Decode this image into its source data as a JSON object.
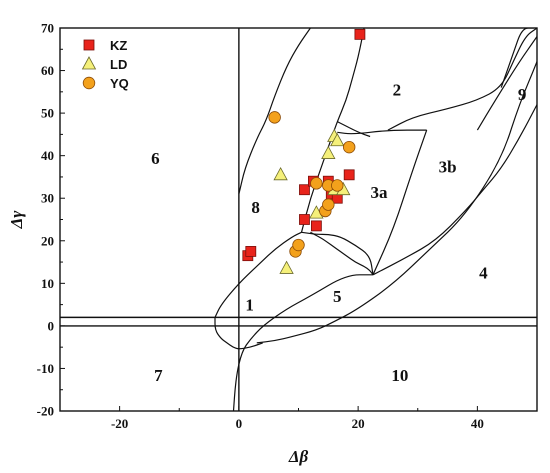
{
  "chart_data": {
    "type": "scatter",
    "xlabel": "Δβ",
    "ylabel": "Δγ",
    "xlim": [
      -30,
      50
    ],
    "ylim": [
      -20,
      70
    ],
    "xticks": [
      -20,
      0,
      20,
      40
    ],
    "yticks": [
      -20,
      -10,
      0,
      10,
      20,
      30,
      40,
      50,
      60,
      70
    ],
    "grid": false,
    "legend_position": "top-left",
    "series": [
      {
        "name": "KZ",
        "marker": "square",
        "color": "#e8231b",
        "points": [
          [
            1.5,
            16.5
          ],
          [
            2,
            17.5
          ],
          [
            11,
            32
          ],
          [
            11,
            25
          ],
          [
            12.5,
            34
          ],
          [
            13,
            23.5
          ],
          [
            15,
            34
          ],
          [
            15.5,
            31
          ],
          [
            16.5,
            30
          ],
          [
            18.5,
            35.5
          ],
          [
            20.3,
            68.5
          ]
        ]
      },
      {
        "name": "LD",
        "marker": "triangle",
        "color": "#f5f07a",
        "points": [
          [
            7,
            35.5
          ],
          [
            8,
            13.5
          ],
          [
            13,
            26.5
          ],
          [
            15,
            40.5
          ],
          [
            16,
            44.5
          ],
          [
            16.5,
            43.5
          ],
          [
            16,
            32
          ],
          [
            17.5,
            32
          ]
        ]
      },
      {
        "name": "YQ",
        "marker": "circle",
        "color": "#f3a11c",
        "points": [
          [
            6,
            49
          ],
          [
            9.5,
            17.5
          ],
          [
            10,
            19
          ],
          [
            13,
            33.5
          ],
          [
            14.5,
            27
          ],
          [
            15,
            28.5
          ],
          [
            15,
            33
          ],
          [
            16.5,
            33
          ],
          [
            18.5,
            42
          ]
        ]
      }
    ],
    "region_labels": [
      {
        "text": "1",
        "x": 1.8,
        "y": 4.5
      },
      {
        "text": "2",
        "x": 26.5,
        "y": 55
      },
      {
        "text": "3a",
        "x": 23.5,
        "y": 31
      },
      {
        "text": "3b",
        "x": 35,
        "y": 37
      },
      {
        "text": "4",
        "x": 41,
        "y": 12
      },
      {
        "text": "5",
        "x": 16.5,
        "y": 6.5
      },
      {
        "text": "6",
        "x": -14,
        "y": 39
      },
      {
        "text": "7",
        "x": -13.5,
        "y": -12
      },
      {
        "text": "8",
        "x": 2.8,
        "y": 27.5
      },
      {
        "text": "9",
        "x": 47.5,
        "y": 54
      },
      {
        "text": "10",
        "x": 27,
        "y": -12
      }
    ],
    "reference_lines": {
      "horizontal": [
        0,
        2
      ],
      "vertical": [
        0
      ]
    },
    "boundaries": [
      [
        [
          -4,
          2
        ],
        [
          -3,
          5
        ],
        [
          0,
          10
        ],
        [
          3,
          14
        ],
        [
          6,
          18
        ],
        [
          9,
          21
        ],
        [
          10.5,
          22
        ]
      ],
      [
        [
          0,
          31
        ],
        [
          1,
          37
        ],
        [
          3,
          44
        ],
        [
          4.5,
          48
        ],
        [
          6,
          54
        ],
        [
          8,
          61
        ],
        [
          10,
          66
        ],
        [
          12,
          70
        ]
      ],
      [
        [
          10.5,
          22
        ],
        [
          12,
          30
        ],
        [
          14,
          38
        ],
        [
          15.5,
          44
        ],
        [
          16.5,
          48
        ],
        [
          18,
          53
        ],
        [
          19,
          58
        ],
        [
          20,
          63
        ],
        [
          21,
          70
        ]
      ],
      [
        [
          12,
          22
        ],
        [
          14,
          20.5
        ],
        [
          15,
          19.5
        ],
        [
          16,
          18.5
        ],
        [
          18,
          16.5
        ],
        [
          19.5,
          15
        ],
        [
          21,
          14
        ],
        [
          22,
          13
        ],
        [
          22.5,
          12
        ]
      ],
      [
        [
          10.5,
          22
        ],
        [
          13,
          21.5
        ],
        [
          15,
          21.5
        ],
        [
          17,
          21
        ],
        [
          19.5,
          19
        ],
        [
          22,
          16.5
        ],
        [
          22.5,
          12
        ]
      ],
      [
        [
          22.5,
          12
        ],
        [
          26,
          23
        ],
        [
          29,
          36
        ],
        [
          31.5,
          46
        ]
      ],
      [
        [
          16.5,
          45.5
        ],
        [
          19,
          45
        ],
        [
          25,
          46
        ],
        [
          31.5,
          46
        ]
      ],
      [
        [
          25,
          46
        ],
        [
          29,
          49
        ],
        [
          35,
          51
        ],
        [
          40,
          53
        ],
        [
          44,
          56
        ],
        [
          46,
          62
        ],
        [
          48,
          68
        ],
        [
          50,
          70
        ]
      ],
      [
        [
          16.5,
          48
        ],
        [
          20,
          45.5
        ],
        [
          22,
          44.5
        ]
      ],
      [
        [
          44,
          56
        ],
        [
          46,
          64
        ],
        [
          47.5,
          70
        ],
        [
          49.5,
          70
        ]
      ],
      [
        [
          -1,
          -22
        ],
        [
          -0.5,
          -12
        ],
        [
          0.5,
          -6
        ],
        [
          2,
          -3
        ],
        [
          4,
          0
        ],
        [
          8,
          4
        ],
        [
          12,
          7
        ],
        [
          18,
          12
        ],
        [
          22.5,
          12
        ]
      ],
      [
        [
          22.5,
          12
        ],
        [
          28,
          16
        ],
        [
          33,
          20
        ],
        [
          38,
          27
        ],
        [
          41,
          32
        ],
        [
          44,
          37
        ],
        [
          47,
          44
        ],
        [
          50,
          52
        ]
      ],
      [
        [
          3,
          -4
        ],
        [
          6,
          -3.5
        ],
        [
          9,
          -2.5
        ],
        [
          13,
          -1
        ],
        [
          16,
          1
        ],
        [
          20,
          4
        ],
        [
          26,
          10
        ],
        [
          32,
          18
        ],
        [
          38,
          26
        ],
        [
          44,
          39
        ],
        [
          47,
          52
        ],
        [
          50,
          62
        ],
        [
          51,
          66
        ]
      ],
      [
        [
          -4,
          2
        ],
        [
          -4,
          -1
        ],
        [
          -3,
          -3
        ],
        [
          -2,
          -4
        ],
        [
          -1,
          -5
        ],
        [
          0,
          -5.5
        ],
        [
          2,
          -5
        ],
        [
          4,
          -4
        ]
      ],
      [
        [
          40,
          46
        ],
        [
          43,
          53
        ],
        [
          47,
          62
        ],
        [
          50,
          68
        ],
        [
          51,
          70
        ]
      ]
    ]
  }
}
